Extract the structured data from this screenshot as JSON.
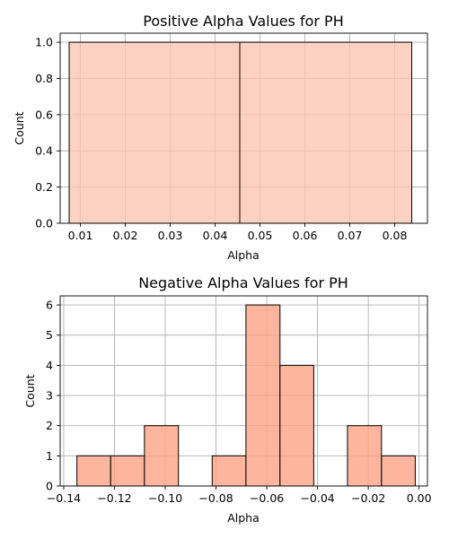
{
  "chart_data": [
    {
      "type": "bar",
      "title": "Positive Alpha Values for PH",
      "xlabel": "Alpha",
      "ylabel": "Count",
      "xlim": [
        0.0055,
        0.0873
      ],
      "ylim": [
        0,
        1.05
      ],
      "xticks": [
        "0.01",
        "0.02",
        "0.03",
        "0.04",
        "0.05",
        "0.06",
        "0.07",
        "0.08"
      ],
      "xtick_values": [
        0.01,
        0.02,
        0.03,
        0.04,
        0.05,
        0.06,
        0.07,
        0.08
      ],
      "yticks": [
        "0.0",
        "0.2",
        "0.4",
        "0.6",
        "0.8",
        "1.0"
      ],
      "ytick_values": [
        0,
        0.2,
        0.4,
        0.6,
        0.8,
        1.0
      ],
      "bins": [
        {
          "start": 0.0075,
          "end": 0.0455,
          "value": 1
        },
        {
          "start": 0.0455,
          "end": 0.0838,
          "value": 1
        }
      ],
      "grid": true,
      "color": "#fcc5b1",
      "edge_color": "#000000"
    },
    {
      "type": "bar",
      "title": "Negative Alpha Values for PH",
      "xlabel": "Alpha",
      "ylabel": "Count",
      "xlim": [
        -0.1414,
        0.0033
      ],
      "ylim": [
        0,
        6.3
      ],
      "xticks": [
        "−0.14",
        "−0.12",
        "−0.10",
        "−0.08",
        "−0.06",
        "−0.04",
        "−0.02",
        "0.00"
      ],
      "xtick_values": [
        -0.14,
        -0.12,
        -0.1,
        -0.08,
        -0.06,
        -0.04,
        -0.02,
        0.0
      ],
      "yticks": [
        "0",
        "1",
        "2",
        "3",
        "4",
        "5",
        "6"
      ],
      "ytick_values": [
        0,
        1,
        2,
        3,
        4,
        5,
        6
      ],
      "bins": [
        {
          "start": -0.1348,
          "end": -0.1215,
          "value": 1
        },
        {
          "start": -0.1215,
          "end": -0.1082,
          "value": 1
        },
        {
          "start": -0.1082,
          "end": -0.0948,
          "value": 2
        },
        {
          "start": -0.0948,
          "end": -0.0815,
          "value": 0
        },
        {
          "start": -0.0815,
          "end": -0.0682,
          "value": 1
        },
        {
          "start": -0.0682,
          "end": -0.0548,
          "value": 6
        },
        {
          "start": -0.0548,
          "end": -0.0415,
          "value": 4
        },
        {
          "start": -0.0415,
          "end": -0.0282,
          "value": 0
        },
        {
          "start": -0.0282,
          "end": -0.0148,
          "value": 2
        },
        {
          "start": -0.0148,
          "end": -0.0015,
          "value": 1
        }
      ],
      "grid": true,
      "color": "#fca385",
      "edge_color": "#000000"
    }
  ]
}
